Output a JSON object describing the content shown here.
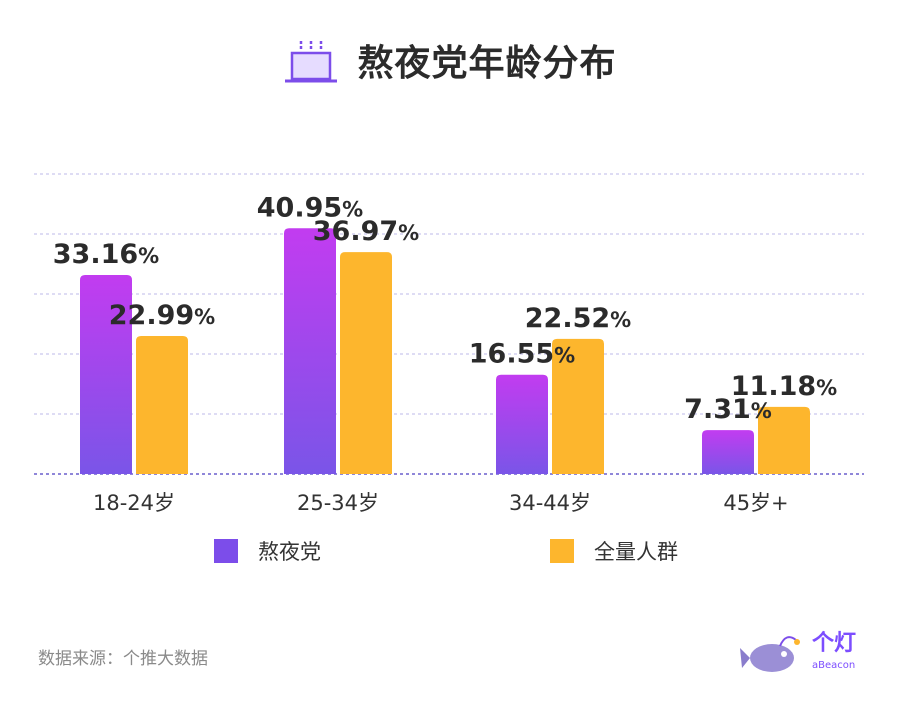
{
  "title": "熬夜党年龄分布",
  "title_icon": "cake-icon",
  "colors": {
    "series1_top": "#c23cf0",
    "series1_bottom": "#7a55e8",
    "series1_legend": "#7c4dea",
    "series2": "#fdb62d",
    "grid": "#c9c6ee",
    "text": "#2b2b2b"
  },
  "chart_data": {
    "type": "bar",
    "categories": [
      "18-24岁",
      "25-34岁",
      "34-44岁",
      "45岁+"
    ],
    "series": [
      {
        "name": "熬夜党",
        "values": [
          33.16,
          40.95,
          16.55,
          7.31
        ],
        "labels": [
          "33.16",
          "40.95",
          "16.55",
          "7.31"
        ]
      },
      {
        "name": "全量人群",
        "values": [
          22.99,
          36.97,
          22.52,
          11.18
        ],
        "labels": [
          "22.99",
          "36.97",
          "22.52",
          "11.18"
        ]
      }
    ],
    "value_suffix": "%",
    "ylim": [
      0,
      50
    ],
    "grid": true,
    "legend_position": "bottom"
  },
  "legend": [
    {
      "label": "熬夜党"
    },
    {
      "label": "全量人群"
    }
  ],
  "source": "数据来源：个推大数据",
  "logo": {
    "name_cn": "个灯",
    "name_en": "aBeacon"
  }
}
